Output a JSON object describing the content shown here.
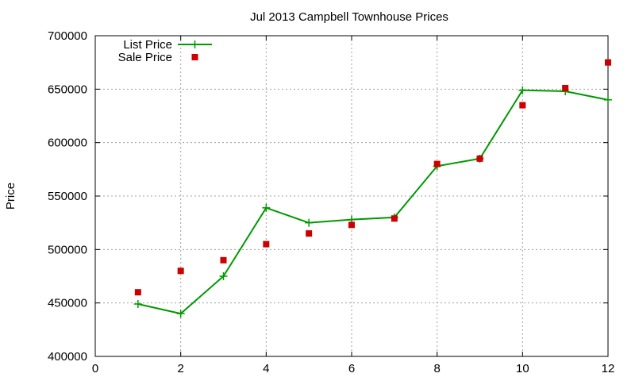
{
  "chart_data": {
    "type": "line",
    "title": "Jul 2013 Campbell Townhouse Prices",
    "xlabel": "",
    "ylabel": "Price",
    "xlim": [
      0,
      12
    ],
    "ylim": [
      400000,
      700000
    ],
    "xticks": [
      "0",
      "2",
      "4",
      "6",
      "8",
      "10",
      "12"
    ],
    "yticks": [
      "400000",
      "450000",
      "500000",
      "550000",
      "600000",
      "650000",
      "700000"
    ],
    "grid": true,
    "legend_position": "top-left",
    "series": [
      {
        "name": "List Price",
        "style": "line-with-plus-markers",
        "color": "#009900",
        "x": [
          1,
          2,
          3,
          4,
          5,
          6,
          7,
          8,
          9,
          10,
          11,
          12
        ],
        "y": [
          449000,
          440000,
          475000,
          539000,
          525000,
          528000,
          530000,
          578000,
          585000,
          649000,
          648000,
          640000
        ]
      },
      {
        "name": "Sale Price",
        "style": "square-points",
        "color": "#cc0000",
        "x": [
          1,
          2,
          3,
          4,
          5,
          6,
          7,
          8,
          9,
          10,
          11,
          12
        ],
        "y": [
          460000,
          480000,
          490000,
          505000,
          515000,
          523000,
          529000,
          580000,
          585000,
          635000,
          651000,
          675000
        ]
      }
    ]
  }
}
